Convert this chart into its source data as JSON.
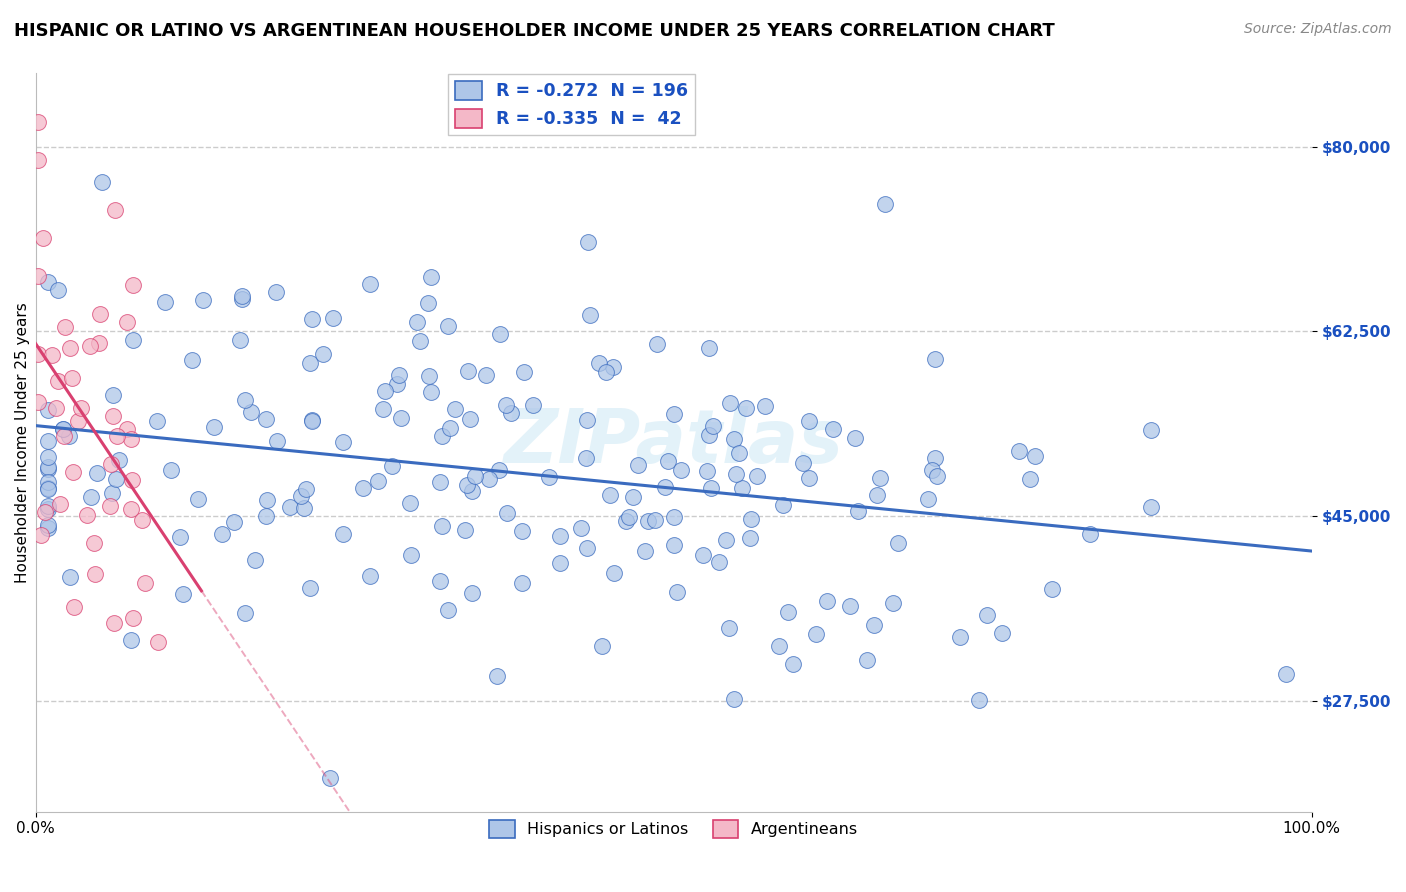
{
  "title": "HISPANIC OR LATINO VS ARGENTINEAN HOUSEHOLDER INCOME UNDER 25 YEARS CORRELATION CHART",
  "source": "Source: ZipAtlas.com",
  "ylabel": "Householder Income Under 25 years",
  "xlim": [
    0.0,
    1.0
  ],
  "ylim": [
    17000,
    87000
  ],
  "yticks": [
    27500,
    45000,
    62500,
    80000
  ],
  "ytick_labels": [
    "$27,500",
    "$45,000",
    "$62,500",
    "$80,000"
  ],
  "xtick_labels": [
    "0.0%",
    "100.0%"
  ],
  "legend_bottom": [
    "Hispanics or Latinos",
    "Argentineans"
  ],
  "blue_scatter_color": "#aec6e8",
  "pink_scatter_color": "#f4b8c8",
  "blue_line_color": "#3a6bbf",
  "pink_line_color": "#d94070",
  "blue_R": -0.272,
  "blue_N": 196,
  "pink_R": -0.335,
  "pink_N": 42,
  "grid_color": "#cccccc",
  "background_color": "#ffffff",
  "title_fontsize": 13,
  "source_fontsize": 10,
  "axis_label_fontsize": 11,
  "tick_fontsize": 11,
  "ytick_color": "#1a50c0"
}
